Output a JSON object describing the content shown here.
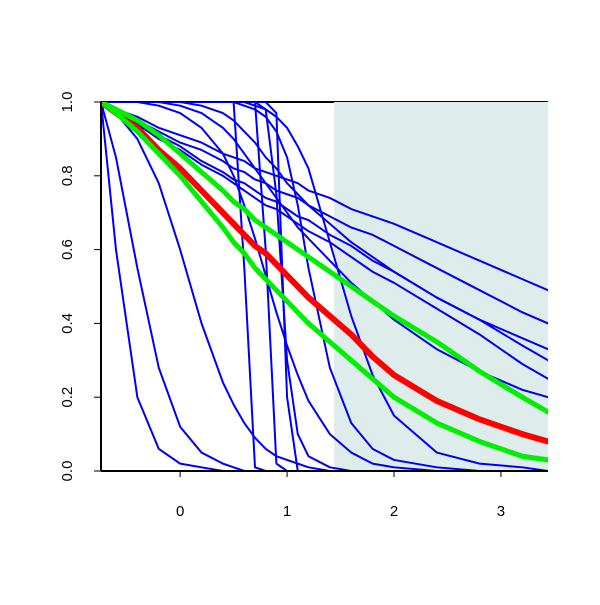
{
  "chart_data": {
    "type": "line",
    "x": [
      -0.74,
      -0.6,
      -0.4,
      -0.2,
      0,
      0.2,
      0.4,
      0.5,
      0.6,
      0.7,
      0.8,
      0.9,
      1.0,
      1.1,
      1.2,
      1.4,
      1.6,
      1.8,
      2.0,
      2.4,
      2.8,
      3.2,
      3.44
    ],
    "xlim": [
      -0.74,
      3.44
    ],
    "ylim": [
      0,
      1
    ],
    "xticks": [
      0,
      1,
      2,
      3
    ],
    "yticks": [
      {
        "value": 0,
        "label": "0.0"
      },
      {
        "value": 0.2,
        "label": "0.2"
      },
      {
        "value": 0.4,
        "label": "0.4"
      },
      {
        "value": 0.6,
        "label": "0.6"
      },
      {
        "value": 0.8,
        "label": "0.8"
      },
      {
        "value": 1,
        "label": "1.0"
      }
    ],
    "shaded_region": {
      "xlim": [
        1.44,
        3.44
      ],
      "ylim": [
        0,
        1
      ],
      "color": "#dfecec"
    },
    "series": [
      {
        "color": "#0000ee",
        "width": 2,
        "values": [
          1,
          0.98,
          0.96,
          0.93,
          0.91,
          0.89,
          0.86,
          0.85,
          0.84,
          0.82,
          0.81,
          0.8,
          0.79,
          0.78,
          0.76,
          0.74,
          0.71,
          0.69,
          0.67,
          0.62,
          0.57,
          0.52,
          0.49
        ]
      },
      {
        "color": "#0000ee",
        "width": 2,
        "values": [
          1,
          0.98,
          0.95,
          0.92,
          0.89,
          0.87,
          0.84,
          0.82,
          0.81,
          0.79,
          0.78,
          0.76,
          0.75,
          0.74,
          0.72,
          0.69,
          0.66,
          0.64,
          0.61,
          0.55,
          0.49,
          0.43,
          0.4
        ]
      },
      {
        "color": "#0000ee",
        "width": 2,
        "values": [
          1,
          0.98,
          0.94,
          0.91,
          0.88,
          0.84,
          0.81,
          0.79,
          0.78,
          0.76,
          0.74,
          0.73,
          0.71,
          0.69,
          0.68,
          0.64,
          0.61,
          0.57,
          0.54,
          0.47,
          0.41,
          0.34,
          0.3
        ]
      },
      {
        "color": "#0000ee",
        "width": 2,
        "values": [
          1,
          0.98,
          0.94,
          0.9,
          0.87,
          0.83,
          0.8,
          0.78,
          0.76,
          0.74,
          0.72,
          0.71,
          0.69,
          0.67,
          0.65,
          0.62,
          0.58,
          0.54,
          0.51,
          0.44,
          0.37,
          0.29,
          0.25
        ]
      },
      {
        "color": "#0000ee",
        "width": 2,
        "values": [
          1,
          1,
          1,
          1,
          1,
          0.99,
          0.97,
          0.95,
          0.92,
          0.89,
          0.85,
          0.82,
          0.78,
          0.75,
          0.72,
          0.67,
          0.62,
          0.58,
          0.54,
          0.47,
          0.41,
          0.36,
          0.33
        ]
      },
      {
        "color": "#0000ee",
        "width": 2,
        "values": [
          1,
          1,
          1,
          1,
          0.99,
          0.97,
          0.93,
          0.9,
          0.86,
          0.82,
          0.78,
          0.74,
          0.7,
          0.66,
          0.63,
          0.57,
          0.51,
          0.46,
          0.41,
          0.33,
          0.27,
          0.22,
          0.2
        ]
      },
      {
        "color": "#0000ee",
        "width": 2,
        "values": [
          1,
          1,
          1,
          1,
          1,
          1,
          1,
          1,
          0.55,
          0.01,
          0,
          0,
          0,
          0,
          0,
          0,
          0,
          0,
          0,
          0,
          0,
          0,
          0
        ]
      },
      {
        "color": "#0000ee",
        "width": 2,
        "values": [
          1,
          1,
          1,
          1,
          1,
          1,
          1,
          1,
          1,
          1,
          0.6,
          0.02,
          0,
          0,
          0,
          0,
          0,
          0,
          0,
          0,
          0,
          0,
          0
        ]
      },
      {
        "color": "#0000ee",
        "width": 2,
        "values": [
          1,
          1,
          1,
          1,
          1,
          1,
          1,
          1,
          1,
          1,
          1,
          0.97,
          0.2,
          0,
          0,
          0,
          0,
          0,
          0,
          0,
          0,
          0,
          0
        ]
      },
      {
        "color": "#0000ee",
        "width": 2,
        "values": [
          1,
          1,
          1,
          1,
          1,
          1,
          1,
          1,
          1,
          1,
          0.98,
          0.75,
          0.3,
          0.1,
          0.04,
          0.01,
          0,
          0,
          0,
          0,
          0,
          0,
          0
        ]
      },
      {
        "color": "#0000ee",
        "width": 2,
        "values": [
          1,
          1,
          1,
          1,
          1,
          1,
          1,
          1,
          0.99,
          0.98,
          0.96,
          0.92,
          0.85,
          0.72,
          0.55,
          0.28,
          0.13,
          0.06,
          0.03,
          0.01,
          0,
          0,
          0
        ]
      },
      {
        "color": "#0000ee",
        "width": 2,
        "values": [
          1,
          1,
          1,
          1,
          1,
          1,
          1,
          1,
          1,
          0.99,
          0.98,
          0.96,
          0.93,
          0.88,
          0.82,
          0.62,
          0.42,
          0.26,
          0.15,
          0.05,
          0.02,
          0.01,
          0
        ]
      },
      {
        "color": "#0000ee",
        "width": 2,
        "values": [
          1,
          1,
          1,
          0.99,
          0.97,
          0.93,
          0.86,
          0.8,
          0.72,
          0.63,
          0.53,
          0.43,
          0.34,
          0.26,
          0.19,
          0.1,
          0.05,
          0.02,
          0.01,
          0,
          0,
          0,
          0
        ]
      },
      {
        "color": "#0000ee",
        "width": 2,
        "values": [
          1,
          0.6,
          0.2,
          0.06,
          0.02,
          0.01,
          0,
          0,
          0,
          0,
          0,
          0,
          0,
          0,
          0,
          0,
          0,
          0,
          0,
          0,
          0,
          0,
          0
        ]
      },
      {
        "color": "#0000ee",
        "width": 2,
        "values": [
          1,
          0.85,
          0.55,
          0.28,
          0.12,
          0.05,
          0.02,
          0.01,
          0,
          0,
          0,
          0,
          0,
          0,
          0,
          0,
          0,
          0,
          0,
          0,
          0,
          0,
          0
        ]
      },
      {
        "color": "#0000ee",
        "width": 2,
        "values": [
          1,
          0.97,
          0.9,
          0.78,
          0.6,
          0.4,
          0.24,
          0.18,
          0.13,
          0.09,
          0.06,
          0.04,
          0.03,
          0.02,
          0.01,
          0,
          0,
          0,
          0,
          0,
          0,
          0,
          0
        ]
      },
      {
        "color": "#ff0000",
        "width": 6,
        "values": [
          1,
          0.97,
          0.93,
          0.87,
          0.82,
          0.76,
          0.7,
          0.67,
          0.64,
          0.61,
          0.59,
          0.56,
          0.53,
          0.5,
          0.47,
          0.42,
          0.37,
          0.31,
          0.26,
          0.19,
          0.14,
          0.1,
          0.08
        ]
      },
      {
        "color": "#00ee00",
        "width": 5,
        "values": [
          1,
          0.98,
          0.95,
          0.91,
          0.86,
          0.81,
          0.76,
          0.73,
          0.71,
          0.68,
          0.66,
          0.64,
          0.62,
          0.6,
          0.58,
          0.54,
          0.5,
          0.46,
          0.42,
          0.35,
          0.27,
          0.2,
          0.16
        ]
      },
      {
        "color": "#00ee00",
        "width": 5,
        "values": [
          1,
          0.97,
          0.92,
          0.86,
          0.8,
          0.73,
          0.66,
          0.62,
          0.59,
          0.55,
          0.52,
          0.49,
          0.46,
          0.43,
          0.4,
          0.35,
          0.3,
          0.25,
          0.2,
          0.13,
          0.08,
          0.04,
          0.03
        ]
      }
    ]
  }
}
